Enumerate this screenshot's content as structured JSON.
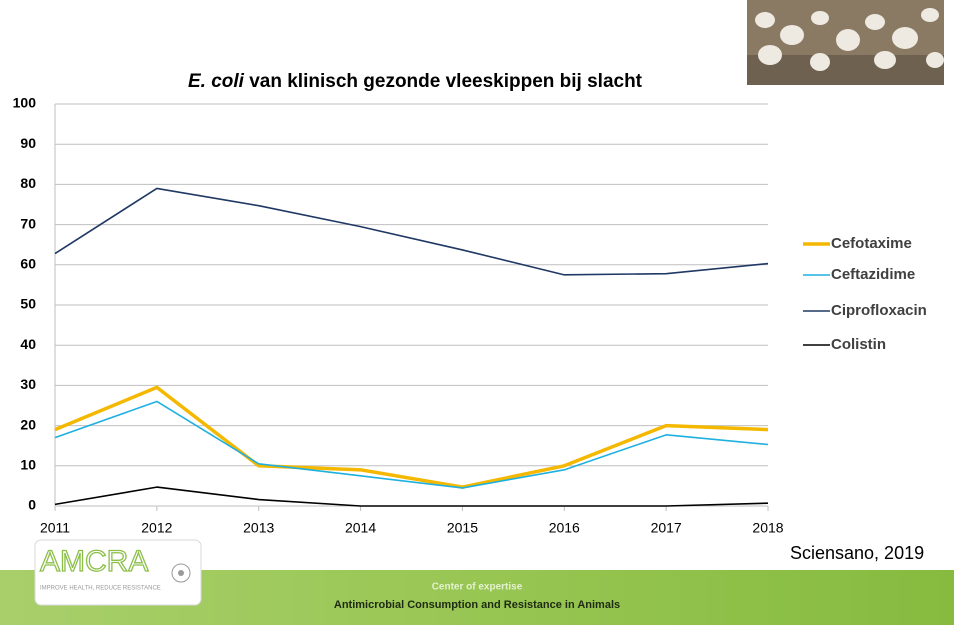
{
  "chart_data": {
    "type": "line",
    "title_emphasis": "E. coli",
    "title": "van klinisch gezonde vleeskippen bij slacht",
    "x": [
      2011,
      2012,
      2013,
      2014,
      2015,
      2016,
      2017,
      2018
    ],
    "xlim": [
      2011,
      2018
    ],
    "xticks": [
      2011,
      2012,
      2013,
      2014,
      2015,
      2016,
      2017,
      2018
    ],
    "ylim": [
      0,
      100
    ],
    "yticks": [
      0,
      10,
      20,
      30,
      40,
      50,
      60,
      70,
      80,
      90,
      100
    ],
    "grid": true,
    "legend": "right",
    "series": [
      {
        "name": "Cefotaxime",
        "color": "#f5b800",
        "line_width": 3.5,
        "values": [
          19,
          29.5,
          10,
          9,
          4.7,
          10,
          20,
          19
        ]
      },
      {
        "name": "Ceftazidime",
        "color": "#1fb0e0",
        "line_width": 1.6,
        "values": [
          17,
          26,
          10.5,
          7.5,
          4.5,
          9,
          17.7,
          15.3
        ]
      },
      {
        "name": "Ciprofloxacin",
        "color": "#1f3864",
        "line_width": 1.6,
        "values": [
          62.8,
          79,
          74.7,
          69.5,
          63.7,
          57.5,
          57.8,
          60.3
        ]
      },
      {
        "name": "Colistin",
        "color": "#000000",
        "line_width": 1.6,
        "values": [
          0.4,
          4.7,
          1.6,
          0,
          0,
          0,
          0,
          0.7
        ]
      }
    ]
  },
  "source": "Sciensano, 2019",
  "logo": {
    "name": "AMCRA",
    "tagline": "IMPROVE HEALTH, REDUCE RESISTANCE"
  },
  "footer": {
    "subtitle": "Center of expertise",
    "title": "Antimicrobial Consumption and Resistance in Animals"
  }
}
